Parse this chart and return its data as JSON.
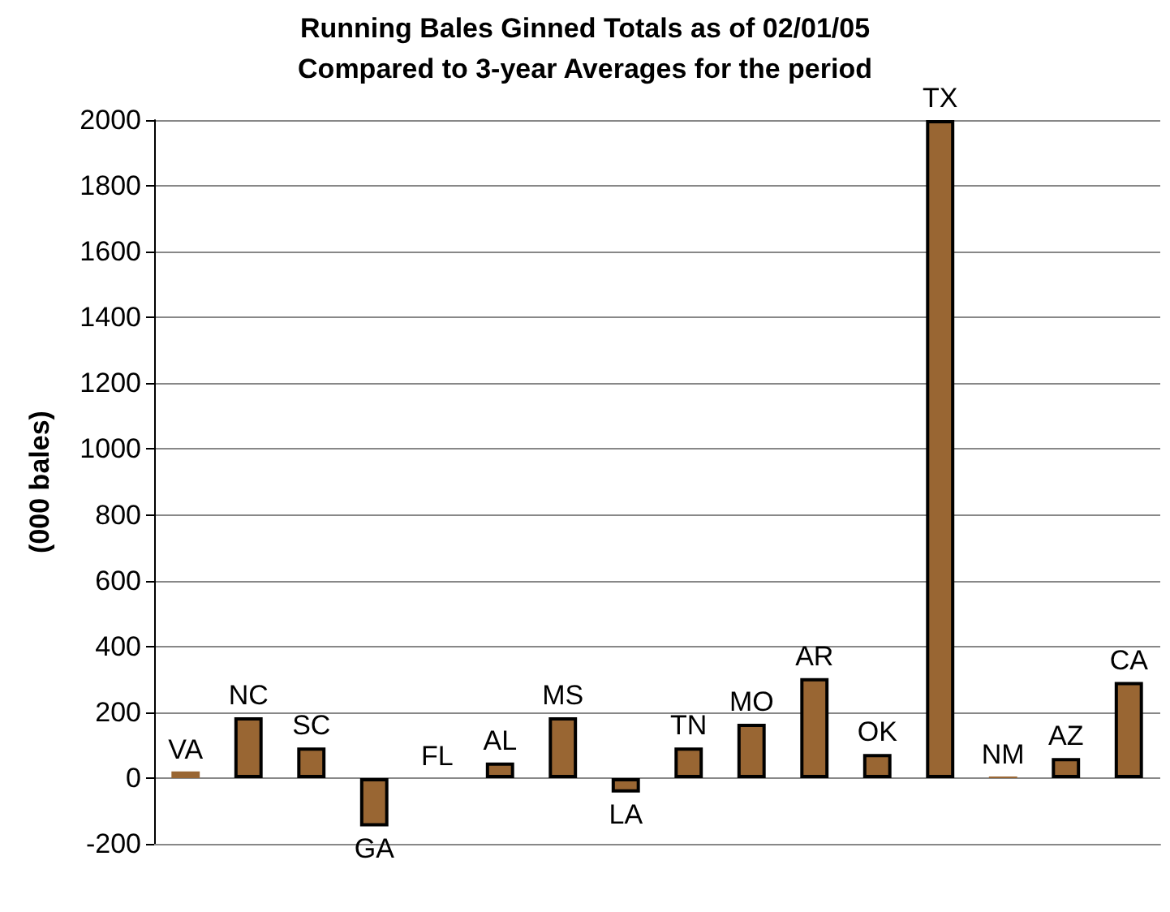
{
  "chart_data": {
    "type": "bar",
    "title": "Running Bales Ginned Totals as of 02/01/05",
    "subtitle": "Compared to 3-year Averages for the period",
    "ylabel": "(000 bales)",
    "categories": [
      "VA",
      "NC",
      "SC",
      "GA",
      "FL",
      "AL",
      "MS",
      "LA",
      "TN",
      "MO",
      "AR",
      "OK",
      "TX",
      "NM",
      "AZ",
      "CA"
    ],
    "values": [
      20,
      185,
      93,
      -147,
      0,
      47,
      185,
      -44,
      93,
      165,
      304,
      73,
      2000,
      5,
      61,
      292
    ],
    "color": "#996633",
    "ylim": [
      -200,
      2000
    ],
    "yticks": [
      -200,
      0,
      200,
      400,
      600,
      800,
      1000,
      1200,
      1400,
      1600,
      1800,
      2000
    ],
    "grid": "y",
    "tick_labels": "y"
  }
}
